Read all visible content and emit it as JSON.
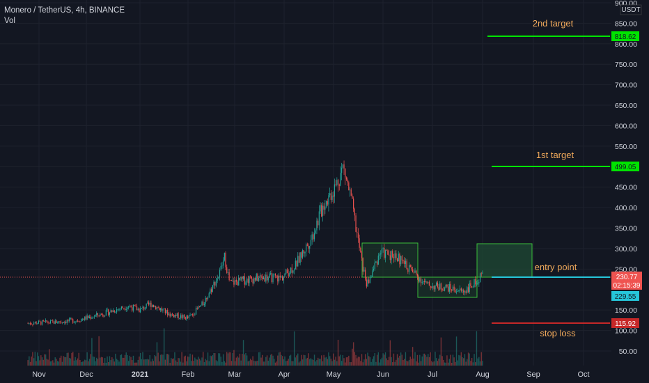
{
  "header": {
    "symbol_line": "Monero / TetherUS, 4h, BINANCE",
    "indicator": "Vol"
  },
  "axis": {
    "currency_label": "USDT",
    "y_ticks": [
      "900.00",
      "850.00",
      "800.00",
      "750.00",
      "700.00",
      "650.00",
      "600.00",
      "550.00",
      "500.00",
      "450.00",
      "400.00",
      "350.00",
      "300.00",
      "250.00",
      "150.00",
      "100.00",
      "50.00"
    ],
    "x_ticks": [
      "Nov",
      "Dec",
      "2021",
      "Feb",
      "Mar",
      "Apr",
      "May",
      "Jun",
      "Jul",
      "Aug",
      "Sep",
      "Oct"
    ]
  },
  "annotations": {
    "target2": {
      "label": "2nd target",
      "price_label": "818.62",
      "color": "#00e400"
    },
    "target1": {
      "label": "1st target",
      "price_label": "499.05",
      "color": "#00e400"
    },
    "entry": {
      "label": "entry point",
      "price_label": "229.55",
      "color": "#26c6da"
    },
    "stop": {
      "label": "stop loss",
      "price_label": "115.92",
      "color": "#e53935"
    },
    "current": {
      "price_label": "230.77",
      "countdown": "02:15:39",
      "color": "#ef5350"
    }
  },
  "colors": {
    "background": "#131722",
    "grid": "#1e222d",
    "up": "#26a69a",
    "down": "#ef5350",
    "text": "#d1d4dc",
    "label_text": "#f0a95b"
  },
  "chart_data": {
    "type": "candlestick",
    "title": "Monero / TetherUS, 4h, BINANCE",
    "ylabel": "USDT",
    "ylim": [
      28,
      910
    ],
    "x_categories": [
      "Nov",
      "Dec",
      "2021",
      "Feb",
      "Mar",
      "Apr",
      "May",
      "Jun",
      "Jul",
      "Aug",
      "Sep",
      "Oct"
    ],
    "price_path": [
      {
        "date": "2020-10-25",
        "price": 118
      },
      {
        "date": "2020-11-10",
        "price": 120
      },
      {
        "date": "2020-11-25",
        "price": 125
      },
      {
        "date": "2020-12-10",
        "price": 140
      },
      {
        "date": "2020-12-25",
        "price": 160
      },
      {
        "date": "2021-01-01",
        "price": 150
      },
      {
        "date": "2021-01-08",
        "price": 165
      },
      {
        "date": "2021-01-20",
        "price": 140
      },
      {
        "date": "2021-02-01",
        "price": 130
      },
      {
        "date": "2021-02-10",
        "price": 165
      },
      {
        "date": "2021-02-20",
        "price": 240
      },
      {
        "date": "2021-02-23",
        "price": 280
      },
      {
        "date": "2021-02-26",
        "price": 215
      },
      {
        "date": "2021-03-10",
        "price": 225
      },
      {
        "date": "2021-03-20",
        "price": 230
      },
      {
        "date": "2021-03-30",
        "price": 228
      },
      {
        "date": "2021-04-08",
        "price": 260
      },
      {
        "date": "2021-04-18",
        "price": 330
      },
      {
        "date": "2021-04-25",
        "price": 410
      },
      {
        "date": "2021-05-02",
        "price": 450
      },
      {
        "date": "2021-05-07",
        "price": 500
      },
      {
        "date": "2021-05-12",
        "price": 420
      },
      {
        "date": "2021-05-19",
        "price": 260
      },
      {
        "date": "2021-05-22",
        "price": 210
      },
      {
        "date": "2021-05-30",
        "price": 290
      },
      {
        "date": "2021-06-08",
        "price": 285
      },
      {
        "date": "2021-06-20",
        "price": 240
      },
      {
        "date": "2021-06-28",
        "price": 210
      },
      {
        "date": "2021-07-10",
        "price": 205
      },
      {
        "date": "2021-07-20",
        "price": 195
      },
      {
        "date": "2021-07-27",
        "price": 215
      },
      {
        "date": "2021-08-01",
        "price": 240
      }
    ],
    "levels": [
      {
        "name": "2nd target",
        "price": 818.62
      },
      {
        "name": "1st target",
        "price": 499.05
      },
      {
        "name": "entry point",
        "price": 229.55
      },
      {
        "name": "stop loss",
        "price": 115.92
      }
    ],
    "last_price": 230.77,
    "volume": "shown as bars at bottom"
  }
}
